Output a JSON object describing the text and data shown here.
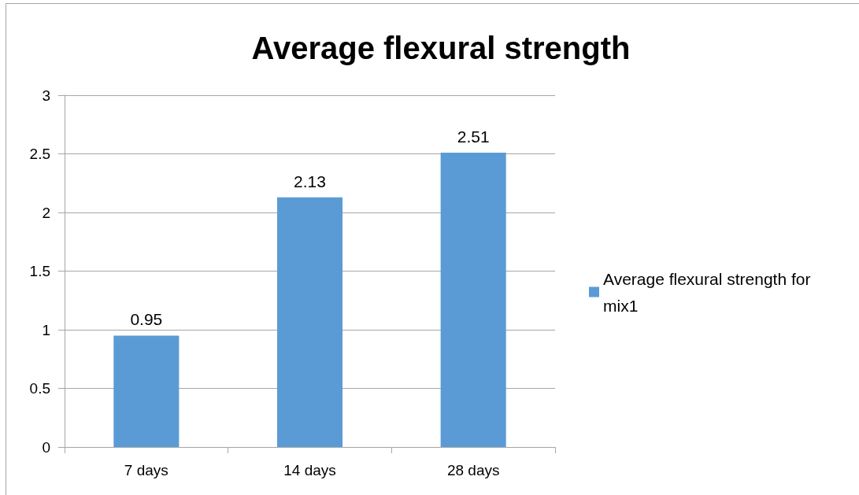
{
  "chart_data": {
    "type": "bar",
    "title": "Average flexural strength",
    "categories": [
      "7 days",
      "14 days",
      "28 days"
    ],
    "series": [
      {
        "name": "Average flexural strength for mix1",
        "color": "#5b9bd5",
        "values": [
          0.95,
          2.13,
          2.51
        ]
      }
    ],
    "ylim": [
      0,
      3
    ],
    "yticks": [
      0,
      0.5,
      1,
      1.5,
      2,
      2.5,
      3
    ],
    "grid": "y",
    "legend": "right",
    "data_labels": true
  }
}
